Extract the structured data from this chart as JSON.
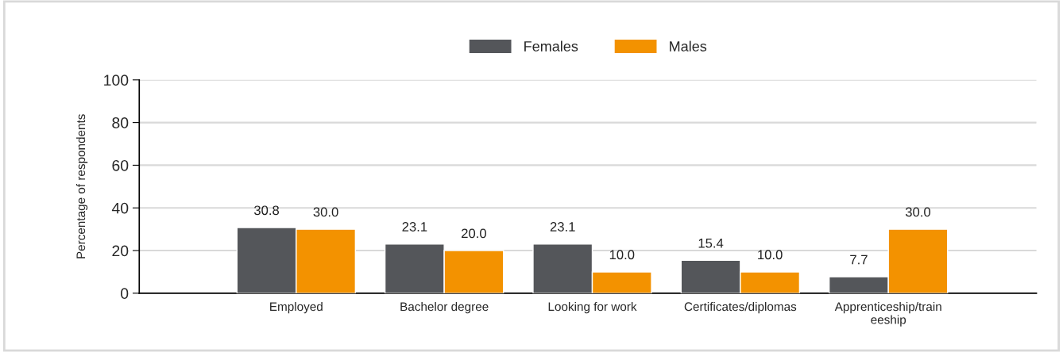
{
  "chart_data": {
    "type": "bar",
    "ylabel": "Percentage of respondents",
    "categories": [
      "Employed",
      "Bachelor degree",
      "Looking for work",
      "Certificates/diplomas",
      "Apprenticeship/train\neeship"
    ],
    "series": [
      {
        "name": "Females",
        "color": "#54565a",
        "values": [
          30.8,
          23.1,
          23.1,
          15.4,
          7.7
        ],
        "value_labels": [
          "30.8",
          "23.1",
          "23.1",
          "15.4",
          "7.7"
        ]
      },
      {
        "name": "Males",
        "color": "#f39200",
        "values": [
          30.0,
          20.0,
          10.0,
          10.0,
          30.0
        ],
        "value_labels": [
          "30.0",
          "20.0",
          "10.0",
          "10.0",
          "30.0"
        ]
      }
    ],
    "ylim": [
      0,
      100
    ],
    "yticks": [
      0,
      20,
      40,
      60,
      80,
      100
    ],
    "grid": "y",
    "legend": "top"
  }
}
